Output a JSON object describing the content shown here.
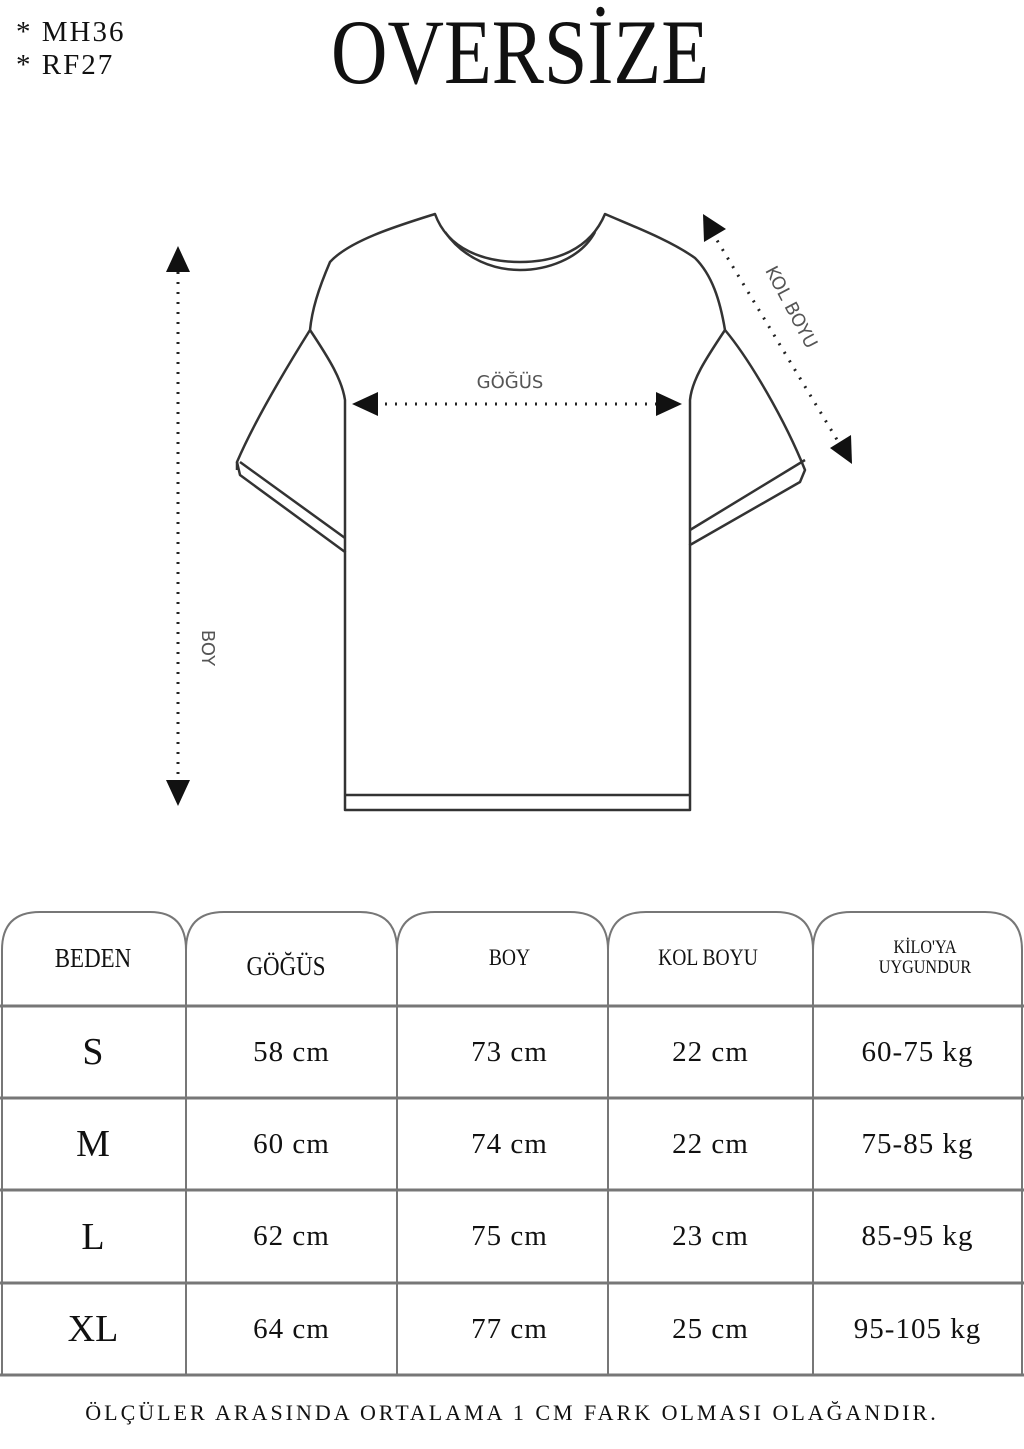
{
  "codes": [
    "*  MH36",
    "*  RF27"
  ],
  "title": "OVERSİZE",
  "diagram": {
    "chest_label": "GÖĞÜS",
    "length_label": "BOY",
    "sleeve_label": "KOL BOYU"
  },
  "table": {
    "headers": [
      "BEDEN",
      "GÖĞÜS",
      "BOY",
      "KOL BOYU",
      "KİLO'YA UYGUNDUR"
    ],
    "rows": [
      [
        "S",
        "58 cm",
        "73 cm",
        "22  cm",
        "60-75 kg"
      ],
      [
        "M",
        "60 cm",
        "74 cm",
        "22 cm",
        "75-85 kg"
      ],
      [
        "L",
        "62 cm",
        "75 cm",
        "23 cm",
        "85-95 kg"
      ],
      [
        "XL",
        "64 cm",
        "77 cm",
        "25 cm",
        "95-105 kg"
      ]
    ]
  },
  "note": "ÖLÇÜLER ARASINDA ORTALAMA 1 CM FARK OLMASI OLAĞANDIR."
}
